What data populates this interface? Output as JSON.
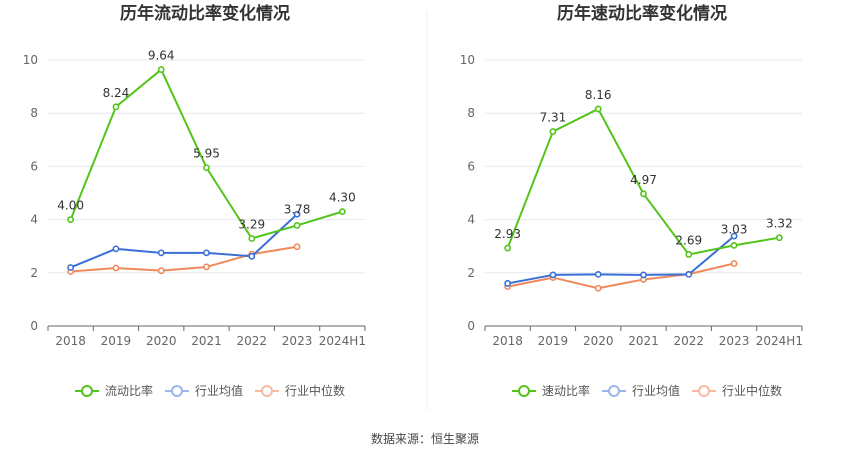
{
  "source": "数据来源：恒生聚源",
  "chart_data": [
    {
      "type": "line",
      "title": "历年流动比率变化情况",
      "categories": [
        "2018",
        "2019",
        "2020",
        "2021",
        "2022",
        "2023",
        "2024H1"
      ],
      "ylim": [
        0,
        10
      ],
      "yticks": [
        "0",
        "2",
        "4",
        "6",
        "8",
        "10"
      ],
      "grid": true,
      "legend_position": "bottom",
      "series": [
        {
          "name": "流动比率",
          "color": "#52c41a",
          "values": [
            4.0,
            8.24,
            9.64,
            5.95,
            3.29,
            3.78,
            4.3
          ],
          "labels": [
            "4.00",
            "8.24",
            "9.64",
            "5.95",
            "3.29",
            "3.78",
            "4.30"
          ]
        },
        {
          "name": "行业均值",
          "color": "#3a6fd8",
          "values": [
            2.2,
            2.9,
            2.75,
            2.75,
            2.62,
            4.2,
            null
          ]
        },
        {
          "name": "行业中位数",
          "color": "#f08a5d",
          "values": [
            2.05,
            2.18,
            2.08,
            2.22,
            2.7,
            2.98,
            null
          ]
        }
      ]
    },
    {
      "type": "line",
      "title": "历年速动比率变化情况",
      "categories": [
        "2018",
        "2019",
        "2020",
        "2021",
        "2022",
        "2023",
        "2024H1"
      ],
      "ylim": [
        0,
        10
      ],
      "yticks": [
        "0",
        "2",
        "4",
        "6",
        "8",
        "10"
      ],
      "grid": true,
      "legend_position": "bottom",
      "series": [
        {
          "name": "速动比率",
          "color": "#52c41a",
          "values": [
            2.93,
            7.31,
            8.16,
            4.97,
            2.69,
            3.03,
            3.32
          ],
          "labels": [
            "2.93",
            "7.31",
            "8.16",
            "4.97",
            "2.69",
            "3.03",
            "3.32"
          ]
        },
        {
          "name": "行业均值",
          "color": "#3a6fd8",
          "values": [
            1.6,
            1.92,
            1.94,
            1.92,
            1.94,
            3.38,
            null
          ]
        },
        {
          "name": "行业中位数",
          "color": "#f08a5d",
          "values": [
            1.48,
            1.82,
            1.42,
            1.75,
            1.95,
            2.35,
            null
          ]
        }
      ]
    }
  ]
}
